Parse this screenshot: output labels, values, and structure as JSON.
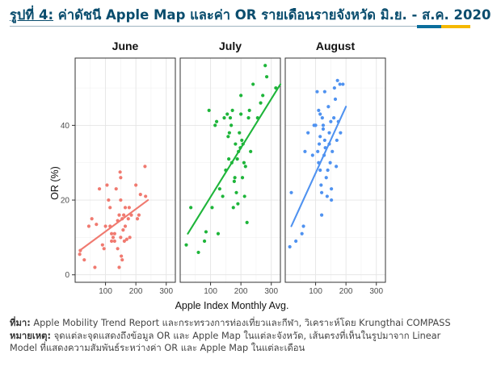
{
  "header": {
    "title_prefix": "รูปที่ 4:",
    "title_rest": " ค่าดัชนี Apple Map และค่า OR รายเดือนรายจังหวัด มิ.ย. - ส.ค. 2020",
    "accent_colors": [
      "#0b6e9c",
      "#f5b800"
    ]
  },
  "footer": {
    "source_label": "ที่มา:",
    "source_text": " Apple Mobility Trend Report และกระทรวงการท่องเที่ยวและกีฬา, วิเคราะห์โดย Krungthai COMPASS",
    "note_label": "หมายเหตุ:",
    "note_text_1": " จุดแต่ละจุดแสดงถึงข้อมูล OR และ Apple Map ในแต่ละจังหวัด, เส้นตรงที่เห็นในรูปมาจาก Linear",
    "note_text_2": "Model ที่แสดงความสัมพันธ์ระหว่างค่า OR และ Apple Map ในแต่ละเดือน"
  },
  "chart_data": {
    "type": "scatter",
    "xlabel": "Apple Index Monthly Avg.",
    "ylabel": "OR (%)",
    "xlim": [
      0,
      330
    ],
    "ylim": [
      -2,
      58
    ],
    "x_ticks": [
      100,
      200,
      300
    ],
    "y_ticks": [
      0,
      20,
      40
    ],
    "grid": true,
    "facets": [
      {
        "name": "June",
        "color": "#f07a70",
        "fit": {
          "x": [
            15,
            240
          ],
          "y": [
            6.5,
            20
          ]
        },
        "points": [
          [
            15,
            5.5
          ],
          [
            17,
            6.5
          ],
          [
            30,
            4
          ],
          [
            45,
            13
          ],
          [
            55,
            15
          ],
          [
            65,
            2
          ],
          [
            70,
            13.5
          ],
          [
            80,
            23
          ],
          [
            90,
            8
          ],
          [
            95,
            7
          ],
          [
            100,
            13
          ],
          [
            105,
            24
          ],
          [
            110,
            20
          ],
          [
            115,
            18
          ],
          [
            115,
            13
          ],
          [
            120,
            11
          ],
          [
            120,
            9
          ],
          [
            125,
            10
          ],
          [
            130,
            9
          ],
          [
            130,
            11
          ],
          [
            135,
            23
          ],
          [
            140,
            14.5
          ],
          [
            140,
            7
          ],
          [
            145,
            16
          ],
          [
            145,
            2
          ],
          [
            148,
            27.5
          ],
          [
            150,
            26
          ],
          [
            150,
            20
          ],
          [
            150,
            10
          ],
          [
            152,
            5
          ],
          [
            155,
            4
          ],
          [
            155,
            15
          ],
          [
            158,
            12
          ],
          [
            160,
            16
          ],
          [
            162,
            9
          ],
          [
            165,
            13
          ],
          [
            165,
            18
          ],
          [
            170,
            9.5
          ],
          [
            175,
            15
          ],
          [
            178,
            18
          ],
          [
            180,
            10
          ],
          [
            185,
            16
          ],
          [
            200,
            24
          ],
          [
            205,
            15
          ],
          [
            210,
            16
          ],
          [
            215,
            21.5
          ],
          [
            230,
            29
          ],
          [
            232,
            21
          ]
        ]
      },
      {
        "name": "July",
        "color": "#1eb53a",
        "fit": {
          "x": [
            25,
            330
          ],
          "y": [
            11,
            51
          ]
        },
        "points": [
          [
            20,
            8
          ],
          [
            35,
            18
          ],
          [
            60,
            6
          ],
          [
            80,
            9
          ],
          [
            85,
            11.5
          ],
          [
            95,
            44
          ],
          [
            105,
            18
          ],
          [
            115,
            40
          ],
          [
            120,
            41
          ],
          [
            125,
            11
          ],
          [
            130,
            23
          ],
          [
            140,
            21
          ],
          [
            145,
            42
          ],
          [
            150,
            28
          ],
          [
            155,
            43
          ],
          [
            158,
            37
          ],
          [
            160,
            31
          ],
          [
            162,
            38
          ],
          [
            165,
            42
          ],
          [
            168,
            40
          ],
          [
            170,
            30
          ],
          [
            172,
            44
          ],
          [
            175,
            18
          ],
          [
            178,
            25
          ],
          [
            180,
            26
          ],
          [
            182,
            35
          ],
          [
            185,
            22
          ],
          [
            188,
            31
          ],
          [
            190,
            19
          ],
          [
            192,
            33
          ],
          [
            195,
            38
          ],
          [
            198,
            34
          ],
          [
            200,
            48
          ],
          [
            200,
            43
          ],
          [
            203,
            36
          ],
          [
            205,
            26
          ],
          [
            207,
            35
          ],
          [
            210,
            30
          ],
          [
            212,
            21
          ],
          [
            215,
            29
          ],
          [
            220,
            14
          ],
          [
            225,
            42
          ],
          [
            228,
            44
          ],
          [
            232,
            33
          ],
          [
            240,
            51
          ],
          [
            255,
            42
          ],
          [
            265,
            46
          ],
          [
            272,
            48
          ],
          [
            280,
            56
          ],
          [
            285,
            53
          ],
          [
            315,
            50
          ]
        ]
      },
      {
        "name": "August",
        "color": "#4f92f0",
        "fit": {
          "x": [
            20,
            200
          ],
          "y": [
            13,
            45
          ]
        },
        "points": [
          [
            15,
            7.5
          ],
          [
            20,
            22
          ],
          [
            35,
            9
          ],
          [
            55,
            11
          ],
          [
            60,
            13
          ],
          [
            65,
            33
          ],
          [
            75,
            38
          ],
          [
            90,
            32
          ],
          [
            95,
            40
          ],
          [
            100,
            40
          ],
          [
            105,
            49
          ],
          [
            107,
            33
          ],
          [
            110,
            44
          ],
          [
            110,
            30
          ],
          [
            112,
            35
          ],
          [
            115,
            43
          ],
          [
            115,
            37
          ],
          [
            115,
            28
          ],
          [
            118,
            24
          ],
          [
            120,
            22
          ],
          [
            120,
            16
          ],
          [
            122,
            42
          ],
          [
            125,
            40
          ],
          [
            125,
            39
          ],
          [
            128,
            32
          ],
          [
            130,
            49
          ],
          [
            130,
            36
          ],
          [
            132,
            34
          ],
          [
            135,
            26
          ],
          [
            138,
            21
          ],
          [
            140,
            28
          ],
          [
            142,
            45
          ],
          [
            145,
            38
          ],
          [
            145,
            35
          ],
          [
            148,
            30
          ],
          [
            150,
            41
          ],
          [
            152,
            23
          ],
          [
            152,
            20
          ],
          [
            155,
            33
          ],
          [
            160,
            42
          ],
          [
            162,
            50
          ],
          [
            165,
            47
          ],
          [
            168,
            29
          ],
          [
            170,
            36
          ],
          [
            172,
            52
          ],
          [
            175,
            41
          ],
          [
            180,
            51
          ],
          [
            182,
            38
          ],
          [
            190,
            51
          ]
        ]
      }
    ]
  }
}
